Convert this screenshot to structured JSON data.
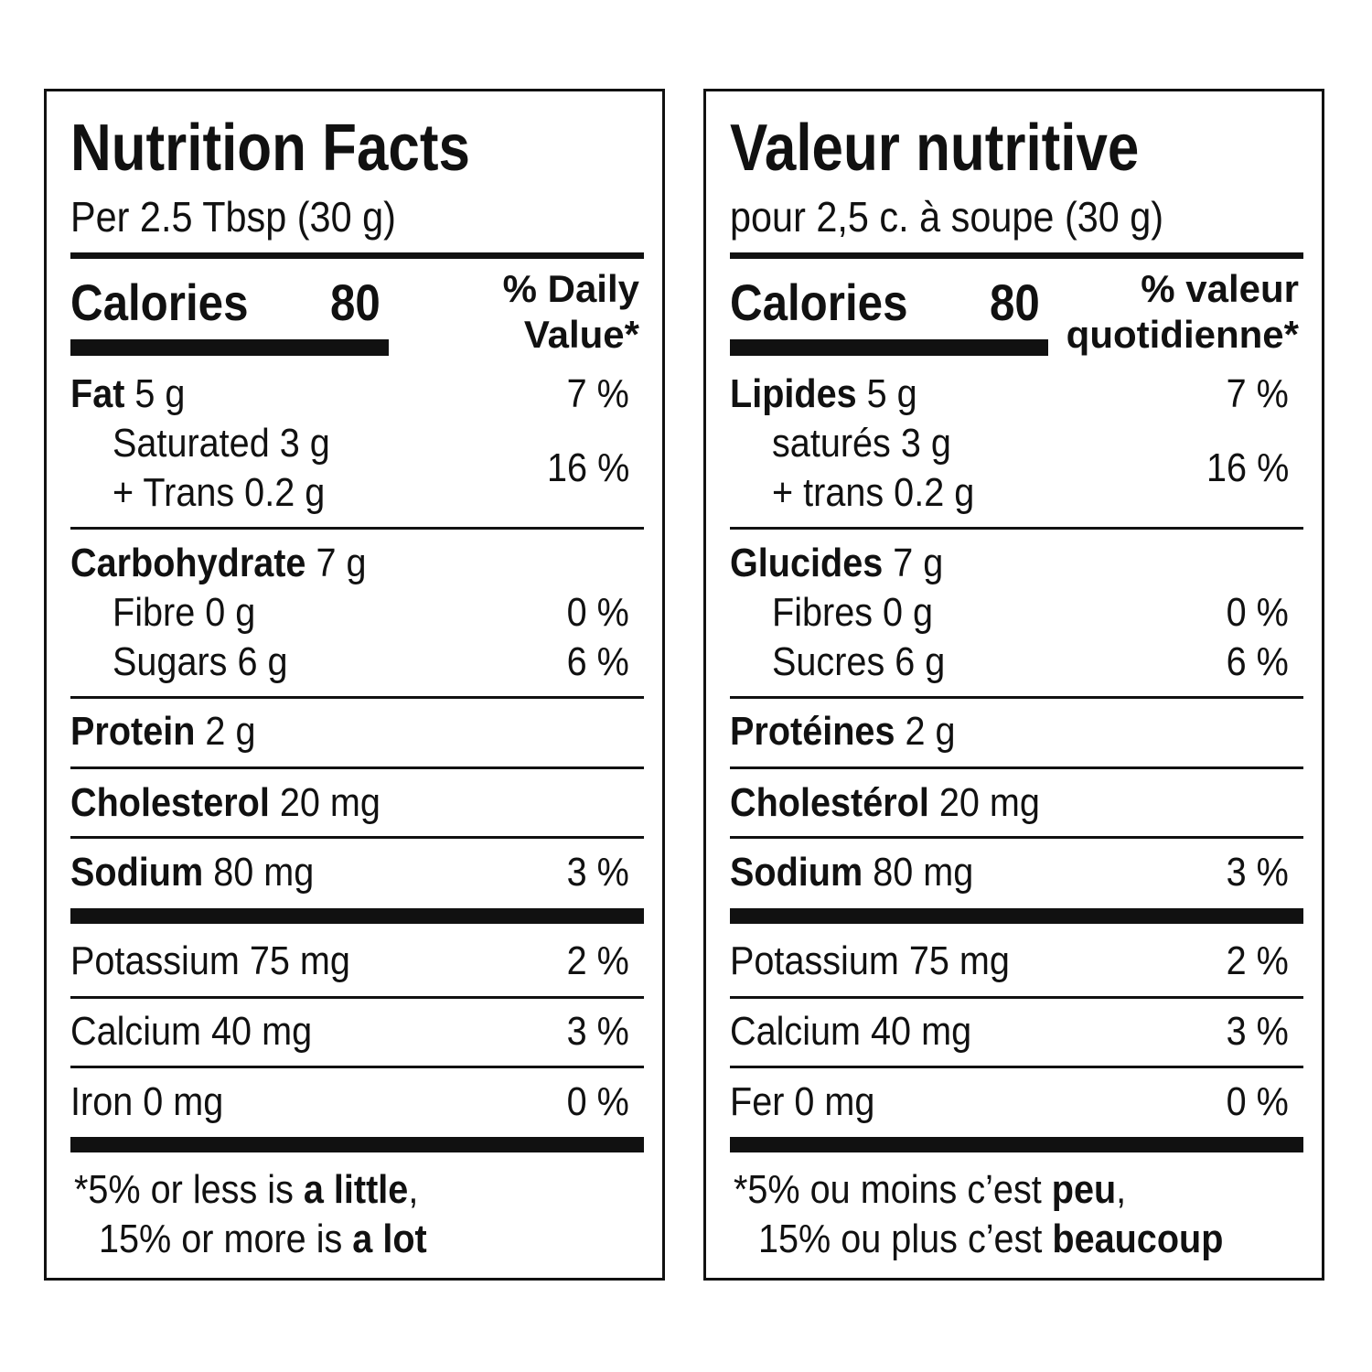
{
  "english": {
    "title": "Nutrition Facts",
    "serving": "Per 2.5 Tbsp (30 g)",
    "calories_label": "Calories",
    "calories_value": "80",
    "dv_line1": "% Daily",
    "dv_line2": "Value*",
    "fat_label": "Fat",
    "fat_amount": " 5 g",
    "fat_pct": "7 %",
    "saturated": "Saturated 3 g",
    "trans": "+ Trans 0.2 g",
    "sat_trans_pct": "16 %",
    "carb_label": "Carbohydrate",
    "carb_amount": " 7 g",
    "fibre": "Fibre 0 g",
    "fibre_pct": "0 %",
    "sugars": "Sugars 6 g",
    "sugars_pct": "6 %",
    "protein_label": "Protein",
    "protein_amount": " 2 g",
    "cholesterol_label": "Cholesterol",
    "cholesterol_amount": " 20 mg",
    "sodium_label": "Sodium",
    "sodium_amount": " 80 mg",
    "sodium_pct": "3 %",
    "potassium": "Potassium 75 mg",
    "potassium_pct": "2 %",
    "calcium": "Calcium 40 mg",
    "calcium_pct": "3 %",
    "iron": "Iron 0 mg",
    "iron_pct": "0 %",
    "foot1_a": "*5% or less is ",
    "foot1_b": "a little",
    "foot1_c": ",",
    "foot2_a": "15% or more is ",
    "foot2_b": "a lot"
  },
  "french": {
    "title": "Valeur nutritive",
    "serving": "pour 2,5 c. à soupe (30 g)",
    "calories_label": "Calories",
    "calories_value": "80",
    "dv_line1": "% valeur",
    "dv_line2": "quotidienne*",
    "fat_label": "Lipides",
    "fat_amount": " 5 g",
    "fat_pct": "7 %",
    "saturated": "saturés 3 g",
    "trans": "+ trans 0.2 g",
    "sat_trans_pct": "16 %",
    "carb_label": "Glucides",
    "carb_amount": " 7 g",
    "fibre": "Fibres 0 g",
    "fibre_pct": "0 %",
    "sugars": "Sucres 6 g",
    "sugars_pct": "6 %",
    "protein_label": "Protéines",
    "protein_amount": " 2 g",
    "cholesterol_label": "Cholestérol",
    "cholesterol_amount": " 20 mg",
    "sodium_label": "Sodium",
    "sodium_amount": " 80 mg",
    "sodium_pct": "3 %",
    "potassium": "Potassium 75 mg",
    "potassium_pct": "2 %",
    "calcium": "Calcium 40 mg",
    "calcium_pct": "3 %",
    "iron": "Fer 0 mg",
    "iron_pct": "0 %",
    "foot1_a": "*5% ou moins c’est ",
    "foot1_b": "peu",
    "foot1_c": ",",
    "foot2_a": "15% ou plus c’est ",
    "foot2_b": "beaucoup"
  }
}
